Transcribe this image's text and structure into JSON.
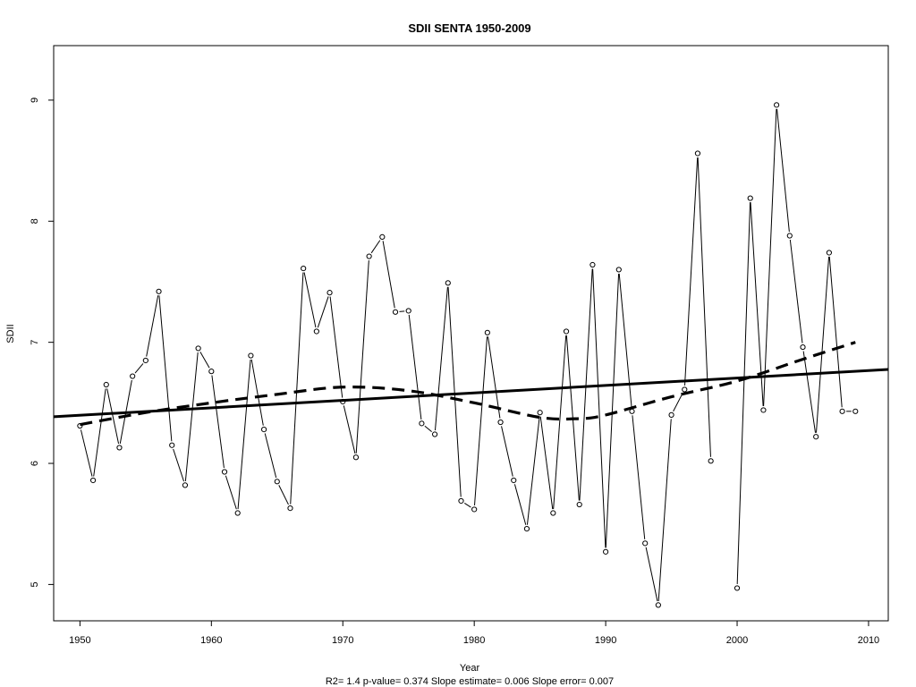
{
  "chart_data": {
    "type": "line",
    "title": "SDII    SENTA 1950-2009",
    "xlabel": "Year",
    "ylabel": "SDII",
    "xlim": [
      1948,
      2011.5
    ],
    "ylim": [
      4.7,
      9.45
    ],
    "x_ticks": [
      1950,
      1960,
      1970,
      1980,
      1990,
      2000,
      2010
    ],
    "y_ticks": [
      5,
      6,
      7,
      8,
      9
    ],
    "grid": false,
    "legend": "none",
    "note": "R2= 1.4  p-value= 0.374  Slope estimate= 0.006  Slope error= 0.007",
    "series": [
      {
        "style": "points-and-lines",
        "x": [
          1950,
          1951,
          1952,
          1953,
          1954,
          1955,
          1956,
          1957,
          1958,
          1959,
          1960,
          1961,
          1962,
          1963,
          1964,
          1965,
          1966,
          1967,
          1968,
          1969,
          1970,
          1971,
          1972,
          1973,
          1974,
          1975,
          1976,
          1977,
          1978,
          1979,
          1980,
          1981,
          1982,
          1983,
          1984,
          1985,
          1986,
          1987,
          1988,
          1989,
          1990,
          1991,
          1992,
          1993,
          1994,
          1995,
          1996,
          1997,
          1998,
          1999,
          2000,
          2001,
          2002,
          2003,
          2004,
          2005,
          2006,
          2007,
          2008,
          2009
        ],
        "values": [
          6.31,
          5.86,
          6.65,
          6.13,
          6.72,
          6.85,
          7.42,
          6.15,
          5.82,
          6.95,
          6.76,
          5.93,
          5.59,
          6.89,
          6.28,
          5.85,
          5.63,
          7.61,
          7.09,
          7.41,
          6.51,
          6.05,
          7.71,
          7.87,
          7.25,
          7.26,
          6.33,
          6.24,
          7.49,
          5.69,
          5.62,
          7.08,
          6.34,
          5.86,
          5.46,
          6.42,
          5.59,
          7.09,
          5.66,
          7.64,
          5.27,
          7.6,
          6.43,
          5.34,
          4.83,
          6.4,
          6.61,
          8.56,
          6.02,
          null,
          4.97,
          8.19,
          6.44,
          8.96,
          7.88,
          6.96,
          6.22,
          7.74,
          6.43,
          6.43
        ]
      },
      {
        "style": "solid-trend",
        "x": [
          1948,
          2011.5
        ],
        "values": [
          6.385,
          6.776
        ]
      },
      {
        "style": "dashed-smooth",
        "x": [
          1950,
          1955,
          1960,
          1965,
          1970,
          1975,
          1980,
          1985,
          1988,
          1990,
          1995,
          2000,
          2005,
          2009
        ],
        "values": [
          6.32,
          6.42,
          6.5,
          6.57,
          6.63,
          6.6,
          6.5,
          6.38,
          6.37,
          6.4,
          6.55,
          6.68,
          6.86,
          7.0
        ]
      }
    ]
  }
}
